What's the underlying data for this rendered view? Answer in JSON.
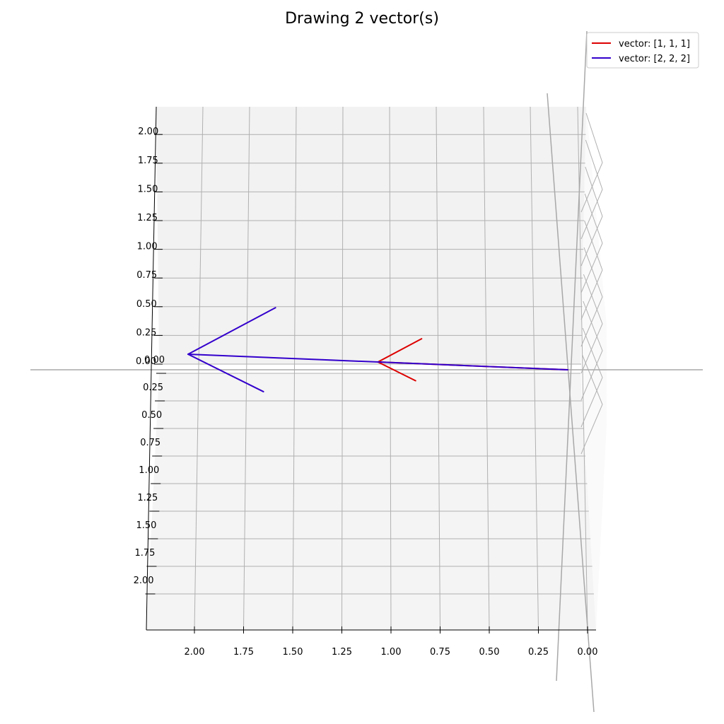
{
  "chart_data": {
    "type": "line",
    "title": "Drawing 2 vector(s)",
    "projection": "3d",
    "xlabel": "",
    "ylabel": "",
    "zlabel": "",
    "x_ticks": [
      "2.00",
      "1.75",
      "1.50",
      "1.25",
      "1.00",
      "0.75",
      "0.50",
      "0.25",
      "0.00"
    ],
    "z_ticks_upper": [
      "2.00",
      "1.75",
      "1.50",
      "1.25",
      "1.00",
      "0.75",
      "0.50",
      "0.25",
      "0.00"
    ],
    "z_ticks_lower": [
      "0.00",
      "0.25",
      "0.50",
      "0.75",
      "1.00",
      "1.25",
      "1.50",
      "1.75",
      "2.00"
    ],
    "xlim": [
      0,
      2
    ],
    "ylim": [
      0,
      2
    ],
    "zlim": [
      0,
      2
    ],
    "grid": true,
    "legend_position": "top-right",
    "series": [
      {
        "name": "vector: [1, 1, 1]",
        "start": [
          0,
          0,
          0
        ],
        "end": [
          1,
          1,
          1
        ],
        "color": "#dd0000"
      },
      {
        "name": "vector: [2, 2, 2]",
        "start": [
          0,
          0,
          0
        ],
        "end": [
          2,
          2,
          2
        ],
        "color": "#3300cc"
      }
    ]
  },
  "colors": {
    "pane": "#f2f2f2",
    "grid": "#b0b0b0",
    "axis_line": "#000000",
    "reference_line": "#a8a8a8"
  }
}
